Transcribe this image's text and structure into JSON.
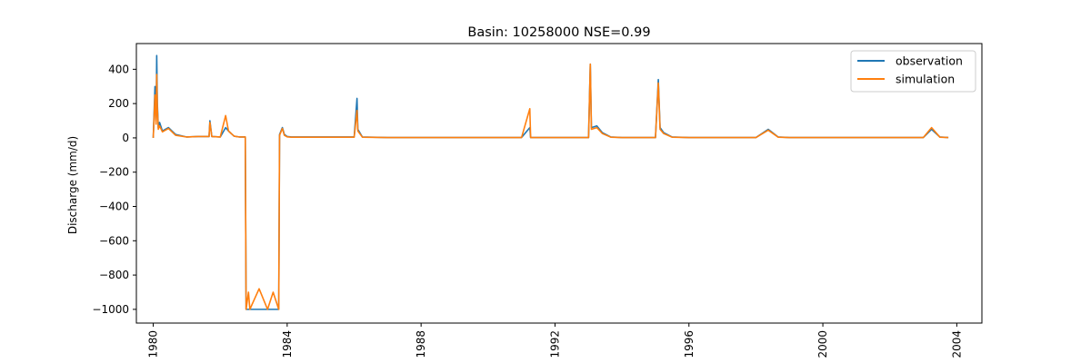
{
  "chart_data": {
    "type": "line",
    "title": "Basin: 10258000 NSE=0.99",
    "xlabel": "",
    "ylabel": "Discharge (mm/d)",
    "xlim": [
      "1979-07-01",
      "2004-10-01"
    ],
    "ylim": [
      -1080,
      550
    ],
    "x_ticks": [
      "1980",
      "1984",
      "1988",
      "1992",
      "1996",
      "2000",
      "2004"
    ],
    "y_ticks": [
      400,
      200,
      0,
      -200,
      -400,
      -600,
      -800,
      -1000
    ],
    "y_tick_labels": [
      "400",
      "200",
      "0",
      "−200",
      "−400",
      "−600",
      "−800",
      "−1000"
    ],
    "grid": false,
    "legend_position": "upper right",
    "colors": {
      "observation": "#1f77b4",
      "simulation": "#ff7f0e"
    },
    "series": [
      {
        "name": "observation",
        "x": [
          "1980-01-01",
          "1980-01-20",
          "1980-02-01",
          "1980-02-08",
          "1980-02-15",
          "1980-02-25",
          "1980-03-10",
          "1980-04-10",
          "1980-06-15",
          "1980-09-01",
          "1981-01-01",
          "1981-05-01",
          "1981-09-01",
          "1981-09-10",
          "1981-10-01",
          "1982-01-01",
          "1982-03-01",
          "1982-04-01",
          "1982-06-01",
          "1982-08-01",
          "1982-10-01",
          "1982-10-10",
          "1983-01-01",
          "1983-06-01",
          "1983-10-01",
          "1983-10-10",
          "1983-11-10",
          "1983-12-01",
          "1984-01-01",
          "1984-02-15",
          "1984-06-01",
          "1985-01-01",
          "1986-01-01",
          "1986-02-01",
          "1986-02-10",
          "1986-04-01",
          "1987-01-01",
          "1989-01-01",
          "1991-01-01",
          "1991-04-01",
          "1991-04-10",
          "1991-05-15",
          "1992-01-01",
          "1993-01-01",
          "1993-01-20",
          "1993-02-01",
          "1993-04-01",
          "1993-06-01",
          "1993-09-01",
          "1994-01-01",
          "1995-01-01",
          "1995-02-01",
          "1995-02-20",
          "1995-04-01",
          "1995-07-01",
          "1996-01-01",
          "1997-01-01",
          "1998-01-01",
          "1998-05-15",
          "1998-09-01",
          "1999-01-01",
          "2001-01-01",
          "2003-01-01",
          "2003-04-01",
          "2003-07-01",
          "2003-10-01"
        ],
        "y": [
          0,
          300,
          100,
          480,
          200,
          60,
          90,
          40,
          60,
          20,
          5,
          8,
          8,
          100,
          8,
          5,
          60,
          40,
          10,
          5,
          5,
          -1000,
          -1000,
          -1000,
          -1000,
          20,
          60,
          20,
          8,
          5,
          5,
          5,
          5,
          230,
          50,
          5,
          2,
          2,
          2,
          60,
          2,
          2,
          2,
          2,
          430,
          60,
          70,
          30,
          5,
          2,
          2,
          340,
          60,
          30,
          5,
          2,
          2,
          2,
          50,
          5,
          2,
          2,
          2,
          50,
          5,
          2
        ]
      },
      {
        "name": "simulation",
        "x": [
          "1980-01-01",
          "1980-01-20",
          "1980-02-01",
          "1980-02-08",
          "1980-02-15",
          "1980-02-25",
          "1980-03-10",
          "1980-04-10",
          "1980-06-15",
          "1980-09-01",
          "1981-01-01",
          "1981-05-01",
          "1981-09-01",
          "1981-09-10",
          "1981-10-01",
          "1982-01-01",
          "1982-03-01",
          "1982-04-01",
          "1982-06-01",
          "1982-08-01",
          "1982-10-01",
          "1982-10-10",
          "1982-11-05",
          "1982-11-20",
          "1983-01-01",
          "1983-03-01",
          "1983-06-01",
          "1983-08-01",
          "1983-10-01",
          "1983-10-10",
          "1983-11-10",
          "1983-12-01",
          "1984-01-01",
          "1984-02-15",
          "1984-06-01",
          "1985-01-01",
          "1986-01-01",
          "1986-02-01",
          "1986-02-10",
          "1986-04-01",
          "1987-01-01",
          "1989-01-01",
          "1991-01-01",
          "1991-04-01",
          "1991-04-10",
          "1991-05-15",
          "1992-01-01",
          "1993-01-01",
          "1993-01-20",
          "1993-02-01",
          "1993-04-01",
          "1993-06-01",
          "1993-09-01",
          "1994-01-01",
          "1995-01-01",
          "1995-02-01",
          "1995-02-20",
          "1995-04-01",
          "1995-07-01",
          "1996-01-01",
          "1997-01-01",
          "1998-01-01",
          "1998-05-15",
          "1998-09-01",
          "1999-01-01",
          "2001-01-01",
          "2003-01-01",
          "2003-04-01",
          "2003-07-01",
          "2003-10-01"
        ],
        "y": [
          0,
          250,
          80,
          370,
          170,
          50,
          70,
          35,
          55,
          15,
          5,
          8,
          8,
          90,
          8,
          5,
          130,
          40,
          10,
          5,
          5,
          -1000,
          -900,
          -1000,
          -950,
          -880,
          -1000,
          -900,
          -1000,
          15,
          55,
          15,
          6,
          4,
          4,
          4,
          4,
          160,
          40,
          4,
          2,
          2,
          2,
          170,
          2,
          2,
          2,
          2,
          430,
          50,
          60,
          25,
          4,
          2,
          2,
          320,
          50,
          25,
          4,
          2,
          2,
          2,
          45,
          4,
          2,
          2,
          2,
          60,
          4,
          2
        ]
      }
    ]
  }
}
